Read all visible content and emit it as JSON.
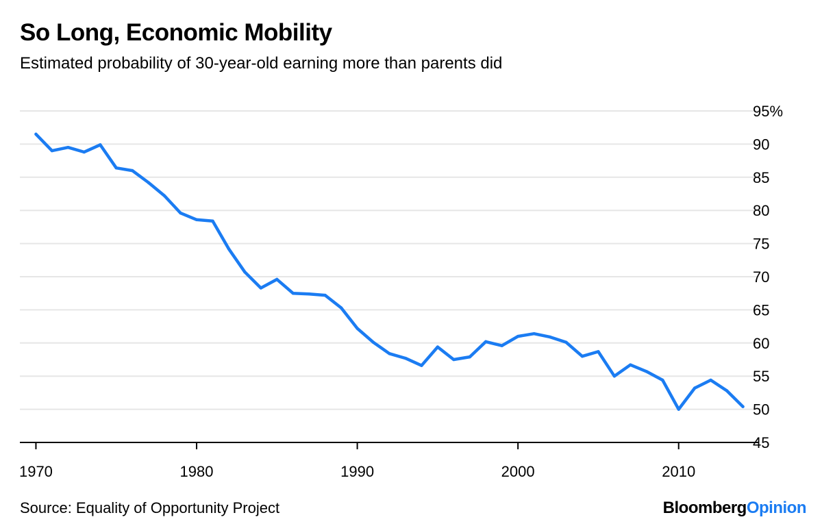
{
  "header": {
    "title": "So Long, Economic Mobility",
    "subtitle": "Estimated probability of 30-year-old earning more than parents did"
  },
  "footer": {
    "source": "Source: Equality of Opportunity Project",
    "brand_part1": "Bloomberg",
    "brand_part2": "Opinion"
  },
  "colors": {
    "line": "#1b7cf2",
    "grid": "#e6e6e6",
    "axis": "#000000",
    "brand_accent": "#1b7cf2"
  },
  "chart_data": {
    "type": "line",
    "title": "So Long, Economic Mobility",
    "subtitle": "Estimated probability of 30-year-old earning more than parents did",
    "xlabel": "",
    "ylabel": "",
    "xlim": [
      1969,
      2015
    ],
    "ylim": [
      45,
      95
    ],
    "x_ticks": [
      1970,
      1980,
      1990,
      2000,
      2010
    ],
    "y_ticks": [
      45,
      50,
      55,
      60,
      65,
      70,
      75,
      80,
      85,
      90,
      95
    ],
    "y_tick_labels": [
      "45",
      "50",
      "55",
      "60",
      "65",
      "70",
      "75",
      "80",
      "85",
      "90",
      "95%"
    ],
    "y_axis_side": "right",
    "grid": "horizontal",
    "legend": "none",
    "series": [
      {
        "x": [
          1970,
          1971,
          1972,
          1973,
          1974,
          1975,
          1976,
          1977,
          1978,
          1979,
          1980,
          1981,
          1982,
          1983,
          1984,
          1985,
          1986,
          1987,
          1988,
          1989,
          1990,
          1991,
          1992,
          1993,
          1994,
          1995,
          1996,
          1997,
          1998,
          1999,
          2000,
          2001,
          2002,
          2003,
          2004,
          2005,
          2006,
          2007,
          2008,
          2009,
          2010,
          2011,
          2012,
          2013,
          2014
        ],
        "values": [
          91.5,
          89.0,
          89.5,
          88.8,
          89.9,
          86.4,
          86.0,
          84.2,
          82.2,
          79.6,
          78.6,
          78.4,
          74.2,
          70.7,
          68.3,
          69.6,
          67.5,
          67.4,
          67.2,
          65.3,
          62.2,
          60.1,
          58.4,
          57.7,
          56.6,
          59.4,
          57.5,
          57.9,
          60.2,
          59.6,
          61.0,
          61.4,
          60.9,
          60.1,
          58.0,
          58.7,
          55.0,
          56.7,
          55.7,
          54.4,
          50.0,
          53.2,
          54.4,
          52.8,
          50.4
        ]
      }
    ]
  }
}
